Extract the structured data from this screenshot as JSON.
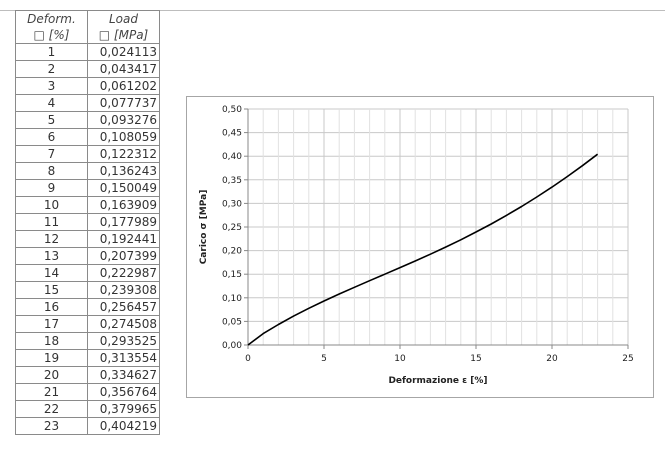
{
  "table": {
    "header": {
      "deformation_label": "Deform.",
      "deformation_unit": "□ [%]",
      "load_label": "Load",
      "load_unit": "□ [MPa]"
    },
    "rows": [
      {
        "deformation": "1",
        "load": "0,024113"
      },
      {
        "deformation": "2",
        "load": "0,043417"
      },
      {
        "deformation": "3",
        "load": "0,061202"
      },
      {
        "deformation": "4",
        "load": "0,077737"
      },
      {
        "deformation": "5",
        "load": "0,093276"
      },
      {
        "deformation": "6",
        "load": "0,108059"
      },
      {
        "deformation": "7",
        "load": "0,122312"
      },
      {
        "deformation": "8",
        "load": "0,136243"
      },
      {
        "deformation": "9",
        "load": "0,150049"
      },
      {
        "deformation": "10",
        "load": "0,163909"
      },
      {
        "deformation": "11",
        "load": "0,177989"
      },
      {
        "deformation": "12",
        "load": "0,192441"
      },
      {
        "deformation": "13",
        "load": "0,207399"
      },
      {
        "deformation": "14",
        "load": "0,222987"
      },
      {
        "deformation": "15",
        "load": "0,239308"
      },
      {
        "deformation": "16",
        "load": "0,256457"
      },
      {
        "deformation": "17",
        "load": "0,274508"
      },
      {
        "deformation": "18",
        "load": "0,293525"
      },
      {
        "deformation": "19",
        "load": "0,313554"
      },
      {
        "deformation": "20",
        "load": "0,334627"
      },
      {
        "deformation": "21",
        "load": "0,356764"
      },
      {
        "deformation": "22",
        "load": "0,379965"
      },
      {
        "deformation": "23",
        "load": "0,404219"
      }
    ]
  },
  "chart_data": {
    "type": "line",
    "title": "",
    "xlabel": "Deformazione ε [%]",
    "ylabel": "Carico σ [MPa]",
    "xlim": [
      0,
      25
    ],
    "ylim": [
      0,
      0.5
    ],
    "x_ticks": [
      0,
      5,
      10,
      15,
      20,
      25
    ],
    "x_tick_labels": [
      "0",
      "5",
      "10",
      "15",
      "20",
      "25"
    ],
    "y_ticks": [
      0,
      0.05,
      0.1,
      0.15,
      0.2,
      0.25,
      0.3,
      0.35,
      0.4,
      0.45,
      0.5
    ],
    "y_tick_labels": [
      "0,00",
      "0,05",
      "0,10",
      "0,15",
      "0,20",
      "0,25",
      "0,30",
      "0,35",
      "0,40",
      "0,45",
      "0,50"
    ],
    "grid": true,
    "legend": "none",
    "line_color": "#000000",
    "series": [
      {
        "x": [
          0,
          1,
          2,
          3,
          4,
          5,
          6,
          7,
          8,
          9,
          10,
          11,
          12,
          13,
          14,
          15,
          16,
          17,
          18,
          19,
          20,
          21,
          22,
          23
        ],
        "y": [
          0,
          0.024113,
          0.043417,
          0.061202,
          0.077737,
          0.093276,
          0.108059,
          0.122312,
          0.136243,
          0.150049,
          0.163909,
          0.177989,
          0.192441,
          0.207399,
          0.222987,
          0.239308,
          0.256457,
          0.274508,
          0.293525,
          0.313554,
          0.334627,
          0.356764,
          0.379965,
          0.404219
        ]
      }
    ]
  }
}
